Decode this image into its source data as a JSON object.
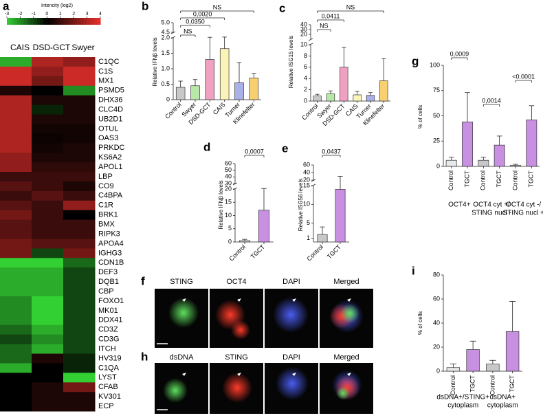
{
  "chart_data": [
    {
      "panel": "a",
      "type": "heatmap",
      "colorbar_title": "Intencity (log2)",
      "zlim": [
        -3,
        4
      ],
      "colorbar_ticks": [
        -3,
        -2,
        -1,
        0,
        1,
        2,
        3,
        4
      ],
      "colors": {
        "low": "#33d033",
        "mid": "#000000",
        "high": "#e8302c"
      },
      "columns": [
        "CAIS",
        "DSD-GCT",
        "Swyer"
      ],
      "rows": [
        "C1QC",
        "C1S",
        "MX1",
        "PSMD5",
        "DHX36",
        "CLC4D",
        "UB2D1",
        "OTUL",
        "OAS3",
        "PRKDC",
        "KS6A2",
        "APOL1",
        "LBP",
        "CO9",
        "C4BPA",
        "C1R",
        "BRK1",
        "BMX",
        "RIPK3",
        "APOA4",
        "IGHG3",
        "CDN1B",
        "DEF3",
        "DQB1",
        "CBP",
        "FOXO1",
        "MK01",
        "DDX41",
        "CD3Z",
        "CD3G",
        "ITCH",
        "HV319",
        "C1QA",
        "LYST",
        "CFAB",
        "KV301",
        "ECP"
      ],
      "label_colors": [
        "#2a7fd0",
        "#000000",
        "#e02020",
        "#000000",
        "#20a020",
        "#000000",
        "#000000",
        "#000000",
        "#e02020",
        "#000000",
        "#000000",
        "#000000",
        "#000000",
        "#000000",
        "#000000",
        "#000000",
        "#2a7fd0",
        "#000000",
        "#000000",
        "#000000",
        "#000000",
        "#000000",
        "#000000",
        "#000000",
        "#000000",
        "#000000",
        "#000000",
        "#20a020",
        "#000000",
        "#000000",
        "#000000",
        "#000000",
        "#2a7fd0",
        "#000000",
        "#000000",
        "#000000",
        "#000000"
      ],
      "values": [
        [
          -2.5,
          3,
          2.5
        ],
        [
          3.5,
          2.5,
          3.5
        ],
        [
          3.5,
          2,
          3.5
        ],
        [
          0.5,
          0,
          -2
        ],
        [
          3,
          0.5,
          0.5
        ],
        [
          3,
          -0.5,
          0.5
        ],
        [
          3,
          0.5,
          0.5
        ],
        [
          3,
          0.3,
          0.3
        ],
        [
          3,
          0.2,
          0.3
        ],
        [
          3,
          0.3,
          0.5
        ],
        [
          2.5,
          0.5,
          0.5
        ],
        [
          2.5,
          0.8,
          0.8
        ],
        [
          1,
          1,
          1
        ],
        [
          1.5,
          1,
          0.5
        ],
        [
          1,
          1.5,
          1
        ],
        [
          1.5,
          1,
          2.5
        ],
        [
          2,
          1,
          0
        ],
        [
          1.5,
          1,
          1
        ],
        [
          1.5,
          1,
          1
        ],
        [
          2,
          1.5,
          1.5
        ],
        [
          2,
          -1,
          2
        ],
        [
          -3,
          -3,
          -1.5
        ],
        [
          -2.5,
          -2.5,
          -1
        ],
        [
          -2.5,
          -2.5,
          -1
        ],
        [
          -2.5,
          -2.5,
          -1
        ],
        [
          -2,
          -3,
          -1
        ],
        [
          -2,
          -3,
          -1
        ],
        [
          -2,
          -3,
          -1
        ],
        [
          -1.5,
          -2.5,
          -1
        ],
        [
          -1,
          -2,
          -1
        ],
        [
          -1.5,
          -2.5,
          -1
        ],
        [
          -1.5,
          0.5,
          -0.5
        ],
        [
          -2.5,
          0,
          -0.5
        ],
        [
          0,
          0,
          -3
        ],
        [
          0,
          0.5,
          2
        ],
        [
          0,
          0.5,
          0.5
        ],
        [
          0,
          0.5,
          0.5
        ]
      ]
    },
    {
      "panel": "b",
      "type": "bar",
      "ylabel": "Relative IFNβ levels",
      "categories": [
        "Control",
        "Swyer",
        "DSD-GCT",
        "CAIS",
        "Turner",
        "Klinefelter"
      ],
      "colors": [
        "#c8c8c8",
        "#b8e8a8",
        "#f0a0c0",
        "#fbf4b8",
        "#aab0e8",
        "#f8d070"
      ],
      "values": [
        0.4,
        0.45,
        1.3,
        1.65,
        0.55,
        0.7
      ],
      "errors": [
        0.2,
        0.2,
        0.95,
        0.7,
        0.65,
        0.15
      ],
      "ylim": [
        0,
        2
      ],
      "yticks": [
        0,
        0.5,
        {
          "value": 1,
          "label": "1.0"
        },
        1.5,
        {
          "value": 2,
          "label": "2.0"
        }
      ],
      "ylim_break": [
        4.5,
        5
      ],
      "yticks_break": [
        4.5,
        {
          "value": 5,
          "label": "5.0"
        }
      ],
      "comparisons": [
        {
          "from": 0,
          "to": 1,
          "label": "NS"
        },
        {
          "from": 0,
          "to": 2,
          "label": "0,0350"
        },
        {
          "from": 0,
          "to": 3,
          "label": "0,0020"
        },
        {
          "from": 0,
          "to": 5,
          "label": "NS"
        }
      ]
    },
    {
      "panel": "c",
      "type": "bar",
      "ylabel": "Relative ISG15 levels",
      "categories": [
        "Control",
        "Swyer",
        "DSD-GCT",
        "CAIS",
        "Turner",
        "Klinefelter"
      ],
      "colors": [
        "#c8c8c8",
        "#b8e8a8",
        "#f0a0c0",
        "#fbf4b8",
        "#aab0e8",
        "#f8d070"
      ],
      "values": [
        0.9,
        1.3,
        6,
        1.1,
        1.0,
        3.6
      ],
      "errors": [
        0.3,
        0.5,
        3.5,
        0.6,
        0.5,
        3.9
      ],
      "ylim": [
        0,
        10
      ],
      "yticks": [
        0,
        2,
        4,
        6,
        8,
        10
      ],
      "ylim_break": [
        10,
        40
      ],
      "yticks_break": [
        20,
        30,
        40
      ],
      "comparisons": [
        {
          "from": 0,
          "to": 1,
          "label": "NS"
        },
        {
          "from": 0,
          "to": 2,
          "label": "0,0411"
        },
        {
          "from": 0,
          "to": 5,
          "label": "NS"
        }
      ]
    },
    {
      "panel": "d",
      "type": "bar",
      "ylabel": "Relative IFNβ levels",
      "categories": [
        "Control",
        "TGCT"
      ],
      "colors": [
        "#c8c8c8",
        "#c890e0"
      ],
      "values": [
        0.5,
        12
      ],
      "errors": [
        0.5,
        9
      ],
      "ylim": [
        0,
        20
      ],
      "yticks": [
        0,
        5,
        10,
        15,
        20
      ],
      "ylim_break": [
        30,
        60
      ],
      "yticks_break": [
        30,
        40,
        50,
        60
      ],
      "comparisons": [
        {
          "from": 0,
          "to": 1,
          "label": "0,0007"
        }
      ]
    },
    {
      "panel": "e",
      "type": "bar",
      "ylabel": "Relative ISG56 levels",
      "categories": [
        "Control",
        "TGCT"
      ],
      "colors": [
        "#c8c8c8",
        "#c890e0"
      ],
      "values": [
        2,
        14
      ],
      "errors": [
        2,
        16
      ],
      "ylim": [
        0,
        15
      ],
      "yticks": [
        1,
        5,
        10,
        15
      ],
      "ylim_break": [
        20,
        60
      ],
      "yticks_break": [
        20,
        40,
        60
      ],
      "comparisons": [
        {
          "from": 0,
          "to": 1,
          "label": "0,0437"
        }
      ]
    },
    {
      "panel": "g",
      "type": "bar",
      "ylabel": "% of cells",
      "categories": [
        "Control",
        "TGCT",
        "Control",
        "TGCT",
        "Control",
        "TGCT"
      ],
      "colors": [
        "#e8e8e8",
        "#c890e0",
        "#c8c8c8",
        "#c890e0",
        "#c8c8c8",
        "#c890e0"
      ],
      "values": [
        6,
        44,
        6,
        21,
        1,
        46
      ],
      "errors": [
        3,
        29,
        3,
        9,
        1,
        14
      ],
      "ylim": [
        0,
        100
      ],
      "yticks": [
        0,
        25,
        50,
        75,
        100
      ],
      "comparisons": [
        {
          "from": 0,
          "to": 1,
          "label": "0,0009"
        },
        {
          "from": 2,
          "to": 3,
          "label": "0,0014"
        },
        {
          "from": 4,
          "to": 5,
          "label": "<0.0001"
        }
      ],
      "groups": [
        {
          "from": 0,
          "to": 1,
          "label": [
            "OCT4+"
          ]
        },
        {
          "from": 2,
          "to": 3,
          "label": [
            "OCT4 cyt +/",
            "STING nucl -"
          ]
        },
        {
          "from": 4,
          "to": 5,
          "label": [
            "OCT4 cyt -/",
            "STING nucl +"
          ]
        }
      ]
    },
    {
      "panel": "i",
      "type": "bar",
      "ylabel": "% of cells",
      "categories": [
        "Control",
        "TGCT",
        "Control",
        "TGCT"
      ],
      "colors": [
        "#e8e8e8",
        "#c890e0",
        "#c8c8c8",
        "#c890e0"
      ],
      "values": [
        3,
        18,
        6,
        33
      ],
      "errors": [
        3,
        7,
        3,
        25
      ],
      "ylim": [
        0,
        80
      ],
      "yticks": [
        0,
        20,
        40,
        60,
        80
      ],
      "groups": [
        {
          "from": 0,
          "to": 1,
          "label": [
            "dsDNA+/STING+",
            "cytoplasm"
          ]
        },
        {
          "from": 2,
          "to": 3,
          "label": [
            "dsDNA+",
            "cytoplasm"
          ]
        }
      ]
    }
  ],
  "image_panels": [
    {
      "panel": "f",
      "channels": [
        "STING",
        "OCT4",
        "DAPI",
        "Merged"
      ]
    },
    {
      "panel": "h",
      "channels": [
        "dsDNA",
        "STING",
        "DAPI",
        "Merged"
      ]
    }
  ]
}
